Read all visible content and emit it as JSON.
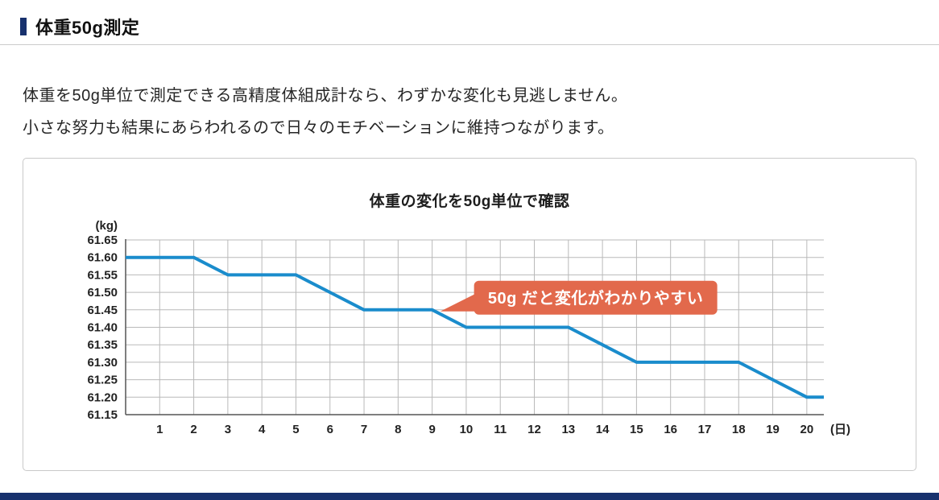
{
  "header": {
    "title": "体重50g測定"
  },
  "intro": {
    "line1": "体重を50g単位で測定できる高精度体組成計なら、わずかな変化も見逃しません。",
    "line2": "小さな努力も結果にあらわれるので日々のモチベーションに維持つながります。"
  },
  "colors": {
    "accent_navy": "#17316d",
    "line_blue": "#1a8ccc",
    "callout_orange": "#e2694c",
    "grid_gray": "#b9b9b9",
    "axis_gray": "#555555"
  },
  "chart_data": {
    "type": "line",
    "title": "体重の変化を50g単位で確認",
    "y_axis_unit": "(kg)",
    "x_axis_unit": "(日)",
    "x": [
      0,
      1,
      2,
      3,
      4,
      5,
      6,
      7,
      8,
      9,
      10,
      11,
      12,
      13,
      14,
      15,
      16,
      17,
      18,
      19,
      20,
      20.5
    ],
    "values": [
      61.6,
      61.6,
      61.6,
      61.55,
      61.55,
      61.55,
      61.5,
      61.45,
      61.45,
      61.45,
      61.4,
      61.4,
      61.4,
      61.4,
      61.35,
      61.3,
      61.3,
      61.3,
      61.3,
      61.25,
      61.2,
      61.2
    ],
    "x_ticks": [
      1,
      2,
      3,
      4,
      5,
      6,
      7,
      8,
      9,
      10,
      11,
      12,
      13,
      14,
      15,
      16,
      17,
      18,
      19,
      20
    ],
    "y_ticks": [
      "61.65",
      "61.60",
      "61.55",
      "61.50",
      "61.45",
      "61.40",
      "61.35",
      "61.30",
      "61.25",
      "61.20",
      "61.15"
    ],
    "xlim": [
      0,
      20.5
    ],
    "ylim": [
      61.15,
      61.65
    ],
    "grid": true,
    "legend": "none",
    "series_color": "#1a8ccc",
    "annotation_color": "#e2694c",
    "annotation": {
      "text": "50g だと変化がわかりやすい",
      "target_x": 9,
      "target_y": 61.45
    }
  }
}
